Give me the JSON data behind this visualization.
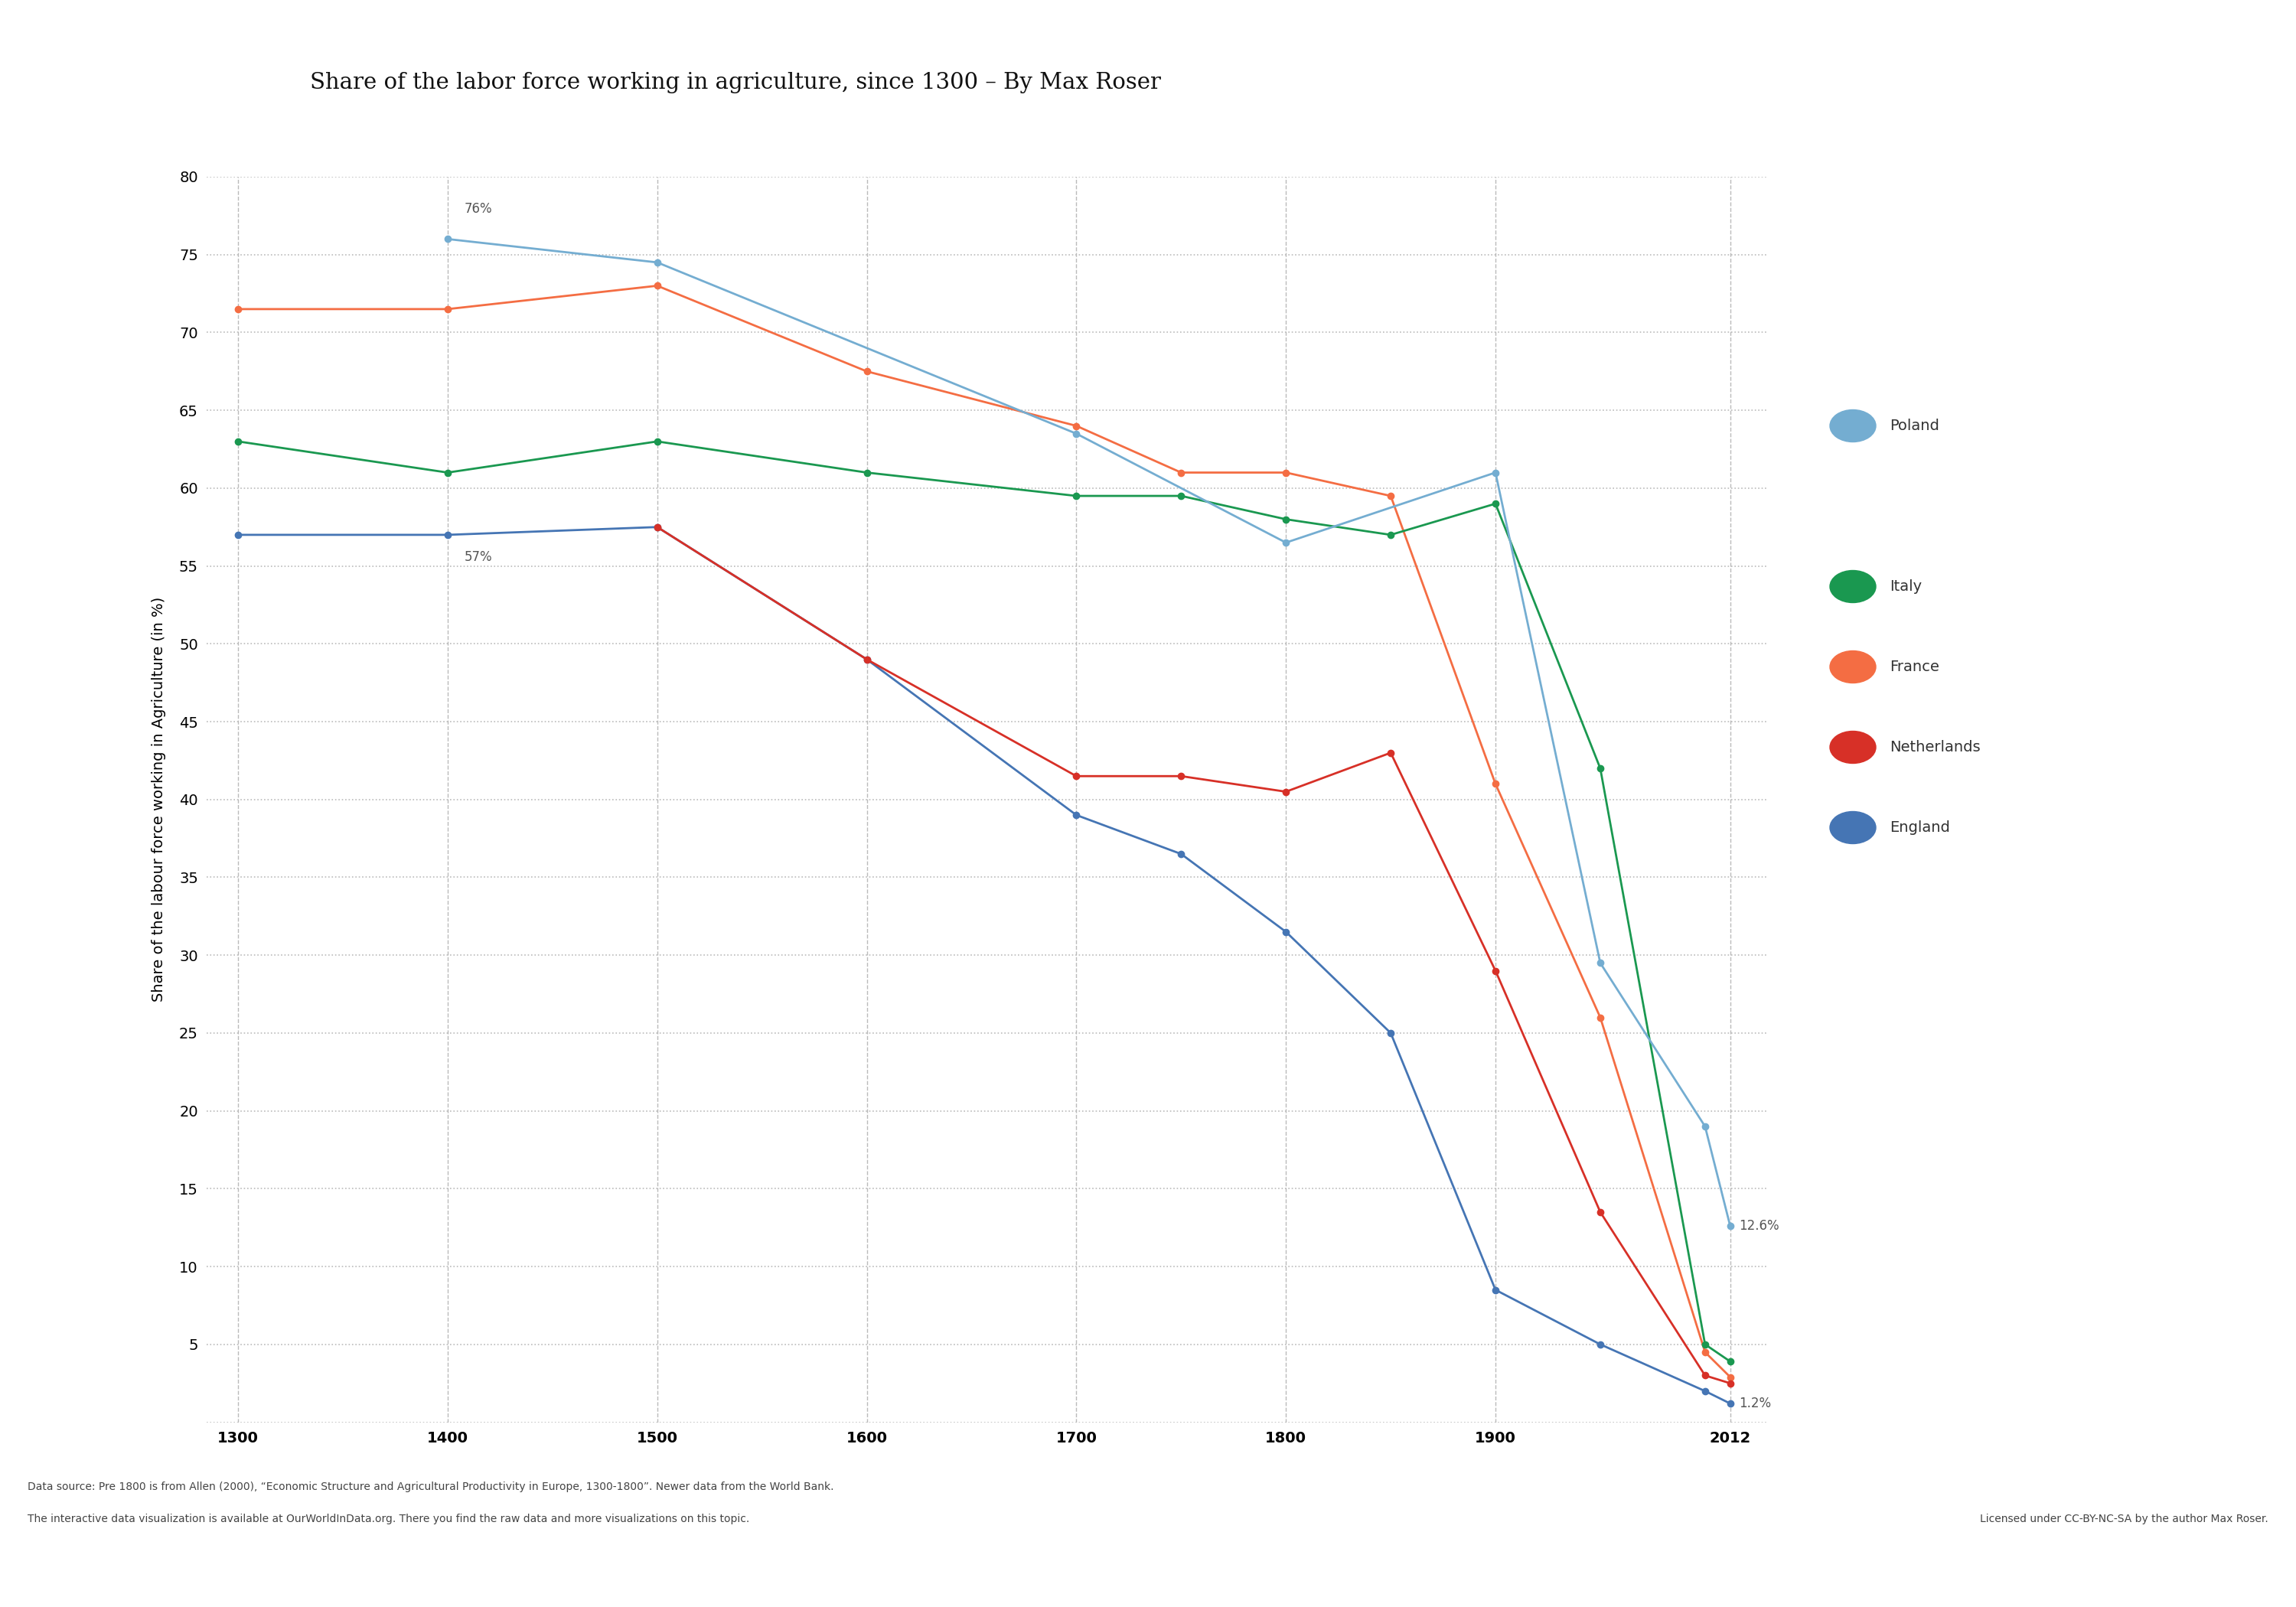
{
  "title": "Share of the labor force working in agriculture, since 1300 – By Max Roser",
  "ylabel": "Share of the labour force working in Agriculture (in %)",
  "background_color": "#ffffff",
  "ylim": [
    0,
    80
  ],
  "yticks": [
    0,
    5,
    10,
    15,
    20,
    25,
    30,
    35,
    40,
    45,
    50,
    55,
    60,
    65,
    70,
    75,
    80
  ],
  "series": {
    "England": {
      "color": "#4575b4",
      "data": [
        [
          1300,
          57
        ],
        [
          1400,
          57
        ],
        [
          1500,
          57.5
        ],
        [
          1600,
          49
        ],
        [
          1700,
          39
        ],
        [
          1750,
          36.5
        ],
        [
          1800,
          31.5
        ],
        [
          1850,
          25
        ],
        [
          1900,
          8.5
        ],
        [
          1950,
          5
        ],
        [
          2000,
          2
        ],
        [
          2012,
          1.2
        ]
      ]
    },
    "France": {
      "color": "#f46d43",
      "data": [
        [
          1300,
          71.5
        ],
        [
          1400,
          71.5
        ],
        [
          1500,
          73
        ],
        [
          1600,
          67.5
        ],
        [
          1700,
          64
        ],
        [
          1750,
          61
        ],
        [
          1800,
          61
        ],
        [
          1850,
          59.5
        ],
        [
          1900,
          41
        ],
        [
          1950,
          26
        ],
        [
          2000,
          4.5
        ],
        [
          2012,
          2.9
        ]
      ]
    },
    "Italy": {
      "color": "#1a9850",
      "data": [
        [
          1300,
          63
        ],
        [
          1400,
          61
        ],
        [
          1500,
          63
        ],
        [
          1600,
          61
        ],
        [
          1700,
          59.5
        ],
        [
          1750,
          59.5
        ],
        [
          1800,
          58
        ],
        [
          1850,
          57
        ],
        [
          1900,
          59
        ],
        [
          1950,
          42
        ],
        [
          2000,
          5
        ],
        [
          2012,
          3.9
        ]
      ]
    },
    "Netherlands": {
      "color": "#d73027",
      "data": [
        [
          1500,
          57.5
        ],
        [
          1600,
          49
        ],
        [
          1700,
          41.5
        ],
        [
          1750,
          41.5
        ],
        [
          1800,
          40.5
        ],
        [
          1850,
          43
        ],
        [
          1900,
          29
        ],
        [
          1950,
          13.5
        ],
        [
          2000,
          3
        ],
        [
          2012,
          2.5
        ]
      ]
    },
    "Poland": {
      "color": "#74add1",
      "data": [
        [
          1400,
          76
        ],
        [
          1500,
          74.5
        ],
        [
          1700,
          63.5
        ],
        [
          1800,
          56.5
        ],
        [
          1900,
          61
        ],
        [
          1950,
          29.5
        ],
        [
          2000,
          19
        ],
        [
          2012,
          12.6
        ]
      ]
    }
  },
  "legend_entries": [
    "Poland",
    "Italy",
    "France",
    "Netherlands",
    "England"
  ],
  "legend_colors": [
    "#74add1",
    "#1a9850",
    "#f46d43",
    "#d73027",
    "#4575b4"
  ],
  "footnote_left_1": "Data source: Pre 1800 is from Allen (2000), “Economic Structure and Agricultural Productivity in Europe, 1300-1800”. Newer data from the World Bank.",
  "footnote_left_2": "The interactive data visualization is available at OurWorldInData.org. There you find the raw data and more visualizations on this topic.",
  "footnote_right": "Licensed under CC-BY-NC-SA by the author Max Roser."
}
